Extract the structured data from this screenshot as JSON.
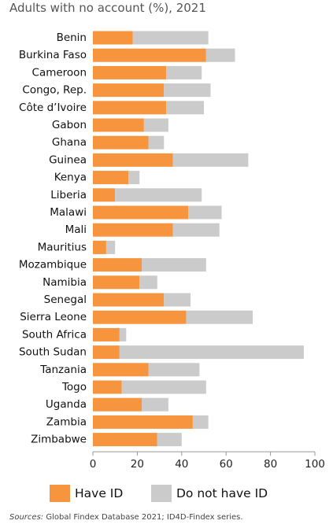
{
  "title": "Adults with no account (%), 2021",
  "source": {
    "prefix": "Sources:",
    "text": "Global Findex Database 2021; ID4D-Findex series."
  },
  "colors": {
    "have_id": "#F7943E",
    "no_id": "#CBCBCB",
    "axis": "#999999"
  },
  "chart_data": {
    "type": "bar",
    "orientation": "horizontal",
    "stacked": true,
    "title": "Adults with no account (%), 2021",
    "xlabel": "",
    "ylabel": "",
    "xlim": [
      0,
      100
    ],
    "xticks": [
      0,
      20,
      40,
      60,
      80,
      100
    ],
    "grid": false,
    "legend_position": "bottom",
    "categories": [
      "Benin",
      "Burkina Faso",
      "Cameroon",
      "Congo, Rep.",
      "Côte d’Ivoire",
      "Gabon",
      "Ghana",
      "Guinea",
      "Kenya",
      "Liberia",
      "Malawi",
      "Mali",
      "Mauritius",
      "Mozambique",
      "Namibia",
      "Senegal",
      "Sierra Leone",
      "South Africa",
      "South Sudan",
      "Tanzania",
      "Togo",
      "Uganda",
      "Zambia",
      "Zimbabwe"
    ],
    "series": [
      {
        "name": "Have ID",
        "color": "#F7943E",
        "values": [
          18,
          51,
          33,
          32,
          33,
          23,
          25,
          36,
          16,
          10,
          43,
          36,
          6,
          22,
          21,
          32,
          42,
          12,
          12,
          25,
          13,
          22,
          45,
          29
        ]
      },
      {
        "name": "Do not have ID",
        "color": "#CBCBCB",
        "values": [
          34,
          13,
          16,
          21,
          17,
          11,
          7,
          34,
          5,
          39,
          15,
          21,
          4,
          29,
          8,
          12,
          30,
          3,
          83,
          23,
          38,
          12,
          7,
          11
        ]
      }
    ]
  }
}
